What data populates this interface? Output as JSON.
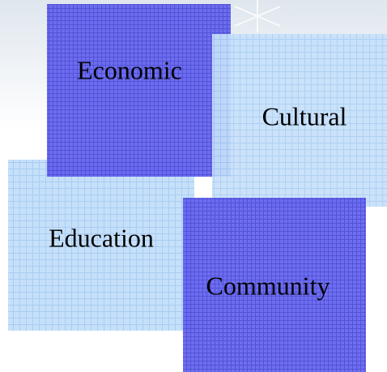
{
  "nodes": [
    {
      "label": "Economic"
    },
    {
      "label": "Cultural"
    },
    {
      "label": "Education"
    },
    {
      "label": "Community"
    }
  ]
}
